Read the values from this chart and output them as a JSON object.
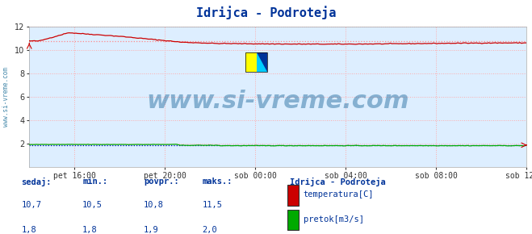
{
  "title": "Idrijca - Podroteja",
  "bg_color": "#ddeeff",
  "plot_bg_color": "#ddeeff",
  "fig_bg_color": "#ddeeff",
  "ylim": [
    0,
    12
  ],
  "yticks": [
    2,
    4,
    6,
    8,
    10,
    12
  ],
  "xlabel_ticks": [
    "pet 16:00",
    "pet 20:00",
    "sob 00:00",
    "sob 04:00",
    "sob 08:00",
    "sob 12:00"
  ],
  "grid_color": "#ffaaaa",
  "grid_linestyle": ":",
  "temp_color": "#cc0000",
  "flow_color": "#00aa00",
  "avg_temp_color": "#ff8888",
  "avg_flow_color": "#0000dd",
  "watermark": "www.si-vreme.com",
  "watermark_color": "#1a6699",
  "watermark_fontsize": 22,
  "legend_title": "Idrijca - Podroteja",
  "legend_title_color": "#003399",
  "legend_items": [
    "temperatura[C]",
    "pretok[m3/s]"
  ],
  "legend_colors": [
    "#cc0000",
    "#00aa00"
  ],
  "table_headers": [
    "sedaj:",
    "min.:",
    "povpr.:",
    "maks.:"
  ],
  "table_temp": [
    "10,7",
    "10,5",
    "10,8",
    "11,5"
  ],
  "table_flow": [
    "1,8",
    "1,8",
    "1,9",
    "2,0"
  ],
  "table_color": "#003399",
  "sidebar_text": "www.si-vreme.com",
  "sidebar_color": "#4488aa",
  "temp_avg_value": 10.8,
  "flow_avg_value": 1.9,
  "n_points": 289,
  "white_bg": "#ffffff"
}
